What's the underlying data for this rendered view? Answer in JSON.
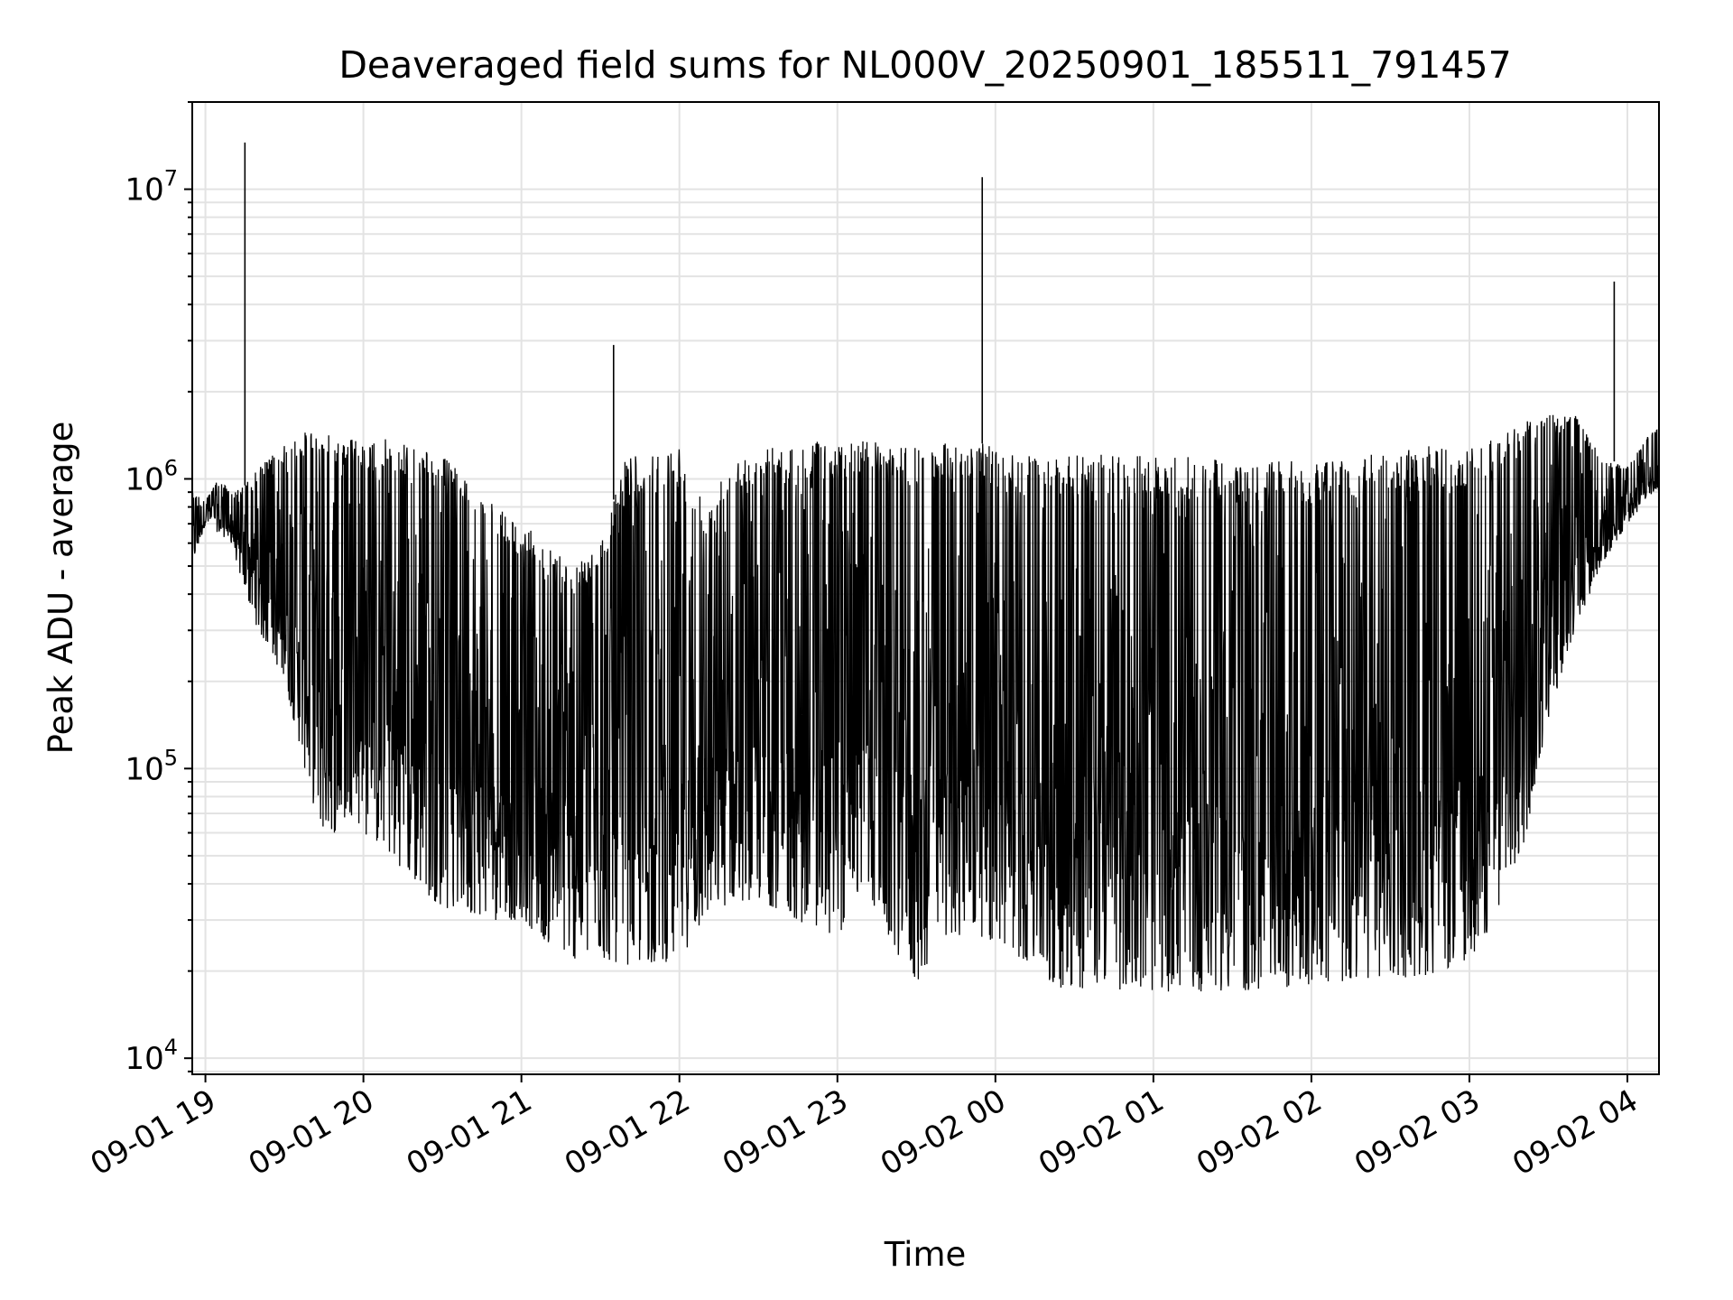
{
  "chart_data": {
    "type": "line",
    "title": "Deaveraged field sums for NL000V_20250901_185511_791457",
    "xlabel": "Time",
    "ylabel": "Peak ADU - average",
    "y_scale": "log",
    "ylim": [
      8800,
      20000000
    ],
    "xlim": [
      "09-01 18:55",
      "09-02 04:12"
    ],
    "grid": true,
    "legend": "none",
    "line_color": "#000000",
    "x_ticks": [
      "09-01 19",
      "09-01 20",
      "09-01 21",
      "09-01 22",
      "09-01 23",
      "09-02 00",
      "09-02 01",
      "09-02 02",
      "09-02 03",
      "09-02 04"
    ],
    "y_ticks": [
      {
        "value": 10000,
        "base": "10",
        "exp": "4"
      },
      {
        "value": 100000,
        "base": "10",
        "exp": "5"
      },
      {
        "value": 1000000,
        "base": "10",
        "exp": "6"
      },
      {
        "value": 10000000,
        "base": "10",
        "exp": "7"
      }
    ],
    "series": [
      {
        "x": [
          "09-01 18:55",
          "09-01 19:00",
          "09-01 19:05",
          "09-01 19:10",
          "09-01 19:15",
          "09-01 19:20",
          "09-01 19:25",
          "09-01 19:30",
          "09-01 19:35",
          "09-01 19:40",
          "09-01 19:45",
          "09-01 19:50",
          "09-01 19:55",
          "09-01 20:00",
          "09-01 20:10",
          "09-01 20:20",
          "09-01 20:30",
          "09-01 20:40",
          "09-01 20:50",
          "09-01 21:00",
          "09-01 21:10",
          "09-01 21:20",
          "09-01 21:30",
          "09-01 21:40",
          "09-01 21:50",
          "09-01 22:00",
          "09-01 22:10",
          "09-01 22:20",
          "09-01 22:30",
          "09-01 22:40",
          "09-01 22:50",
          "09-01 23:00",
          "09-01 23:10",
          "09-01 23:20",
          "09-01 23:30",
          "09-01 23:40",
          "09-01 23:50",
          "09-02 00:00",
          "09-02 00:10",
          "09-02 00:20",
          "09-02 00:30",
          "09-02 00:40",
          "09-02 00:50",
          "09-02 01:00",
          "09-02 01:10",
          "09-02 01:20",
          "09-02 01:30",
          "09-02 01:40",
          "09-02 01:50",
          "09-02 02:00",
          "09-02 02:10",
          "09-02 02:20",
          "09-02 02:30",
          "09-02 02:40",
          "09-02 02:50",
          "09-02 03:00",
          "09-02 03:10",
          "09-02 03:20",
          "09-02 03:30",
          "09-02 03:40",
          "09-02 03:50",
          "09-02 04:00",
          "09-02 04:10"
        ],
        "y_high": [
          900000,
          850000,
          1000000,
          900000,
          950000,
          1100000,
          1200000,
          1300000,
          1400000,
          1500000,
          1500000,
          1400000,
          1400000,
          1300000,
          1400000,
          1300000,
          1200000,
          1000000,
          800000,
          700000,
          600000,
          500000,
          600000,
          1200000,
          1200000,
          1300000,
          800000,
          1200000,
          1300000,
          1300000,
          1350000,
          1350000,
          1400000,
          1300000,
          1300000,
          1350000,
          1350000,
          1300000,
          1200000,
          1200000,
          1200000,
          1250000,
          1200000,
          1200000,
          1200000,
          1200000,
          1150000,
          1150000,
          1150000,
          1150000,
          1200000,
          1200000,
          1250000,
          1300000,
          1300000,
          1300000,
          1400000,
          1600000,
          1700000,
          1700000,
          1200000,
          1100000,
          1500000
        ],
        "y_low": [
          500000,
          700000,
          650000,
          600000,
          400000,
          300000,
          250000,
          200000,
          130000,
          80000,
          60000,
          60000,
          70000,
          60000,
          50000,
          40000,
          33000,
          32000,
          30000,
          30000,
          25000,
          22000,
          22000,
          21000,
          21000,
          22000,
          30000,
          35000,
          35000,
          32000,
          28000,
          26000,
          40000,
          25000,
          18000,
          26000,
          27000,
          25000,
          22000,
          18000,
          17000,
          18000,
          17000,
          17000,
          17000,
          17000,
          17000,
          17000,
          17000,
          18000,
          18000,
          18000,
          19000,
          19000,
          20000,
          22000,
          30000,
          50000,
          150000,
          300000,
          500000,
          700000,
          900000
        ],
        "spikes": [
          {
            "x": "09-01 19:15",
            "y": 14500000
          },
          {
            "x": "09-01 21:35",
            "y": 2900000
          },
          {
            "x": "09-01 23:55",
            "y": 11000000
          },
          {
            "x": "09-02 03:55",
            "y": 4800000
          }
        ]
      }
    ]
  }
}
